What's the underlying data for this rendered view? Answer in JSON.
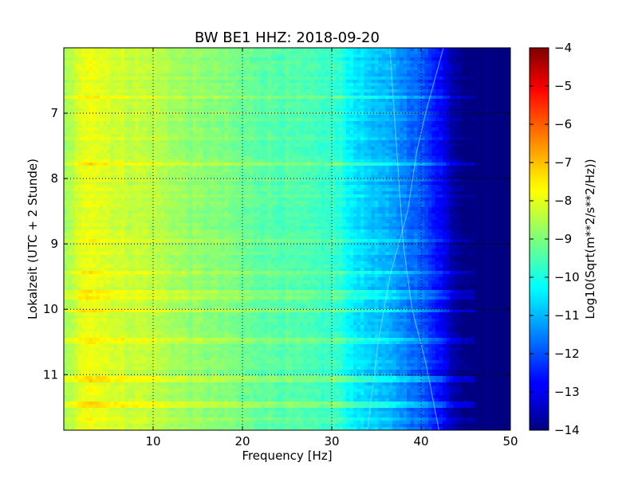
{
  "chart_data": {
    "type": "heatmap",
    "title": "BW BE1 HHZ: 2018-09-20",
    "xlabel": "Frequency [Hz]",
    "ylabel": "Lokalzeit (UTC + 2 Stunde)",
    "colorbar_label": "Log10(Sqrt(m**2/s**2/Hz))",
    "xlim": [
      0,
      50
    ],
    "ylim": [
      6,
      11.85
    ],
    "y_inverted": true,
    "x_ticks": [
      10,
      20,
      30,
      40,
      50
    ],
    "y_ticks": [
      7,
      8,
      9,
      10,
      11
    ],
    "colorbar_range": [
      -14,
      -4
    ],
    "colorbar_ticks": [
      -4,
      -5,
      -6,
      -7,
      -8,
      -9,
      -10,
      -11,
      -12,
      -13,
      -14
    ],
    "colormap": "jet",
    "grid": true,
    "spectral_profile": {
      "frequency_hz": [
        0,
        1,
        2,
        3,
        4,
        6,
        8,
        10,
        12,
        14,
        16,
        18,
        20,
        22,
        24,
        26,
        28,
        30,
        31,
        32,
        34,
        36,
        38,
        40,
        42,
        43,
        44,
        45,
        46,
        50
      ],
      "log10_amplitude": [
        -8.8,
        -8.4,
        -8.1,
        -7.8,
        -8.0,
        -8.2,
        -8.3,
        -8.4,
        -8.6,
        -8.8,
        -8.9,
        -9.0,
        -9.2,
        -9.3,
        -9.4,
        -9.5,
        -9.6,
        -9.7,
        -9.9,
        -10.3,
        -10.7,
        -11.0,
        -11.4,
        -11.9,
        -12.6,
        -13.2,
        -13.7,
        -13.95,
        -14.0,
        -14.0
      ]
    }
  }
}
